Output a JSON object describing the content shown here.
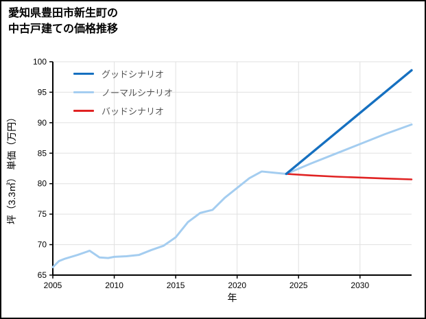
{
  "title": {
    "line1": "愛知県豊田市新生町の",
    "line2": "中古戸建ての価格推移"
  },
  "chart_data": {
    "type": "line",
    "title": "愛知県豊田市新生町の中古戸建ての価格推移",
    "xlabel": "年",
    "ylabel": "坪（3.3㎡） 単価（万円）",
    "xlim": [
      2005,
      2034.2
    ],
    "ylim": [
      65,
      100
    ],
    "xticks": [
      2005,
      2010,
      2015,
      2020,
      2025,
      2030
    ],
    "yticks": [
      65,
      70,
      75,
      80,
      85,
      90,
      95,
      100
    ],
    "grid_color": "#e0e0e0",
    "legend_position": "upper-left-inside",
    "draw_order": [
      1,
      2,
      0
    ],
    "series": [
      {
        "name": "グッドシナリオ",
        "color": "#1670c0",
        "width": 3.4,
        "x": [
          2024,
          2034.2
        ],
        "y": [
          81.6,
          98.6
        ]
      },
      {
        "name": "ノーマルシナリオ",
        "color": "#a4cdf0",
        "width": 3,
        "x": [
          2005,
          2005.5,
          2006,
          2007,
          2008,
          2008.8,
          2009.5,
          2010,
          2011,
          2012,
          2013,
          2014,
          2015,
          2016,
          2017,
          2018,
          2019,
          2020,
          2021,
          2022,
          2023,
          2024,
          2026,
          2028,
          2030,
          2032,
          2034.2
        ],
        "y": [
          66.3,
          67.3,
          67.7,
          68.3,
          69.0,
          67.9,
          67.8,
          68.0,
          68.1,
          68.3,
          69.1,
          69.8,
          71.2,
          73.7,
          75.2,
          75.7,
          77.7,
          79.3,
          80.9,
          82.0,
          81.8,
          81.6,
          83.3,
          84.9,
          86.5,
          88.1,
          89.7
        ]
      },
      {
        "name": "バッドシナリオ",
        "color": "#e02222",
        "width": 2.6,
        "x": [
          2024,
          2026,
          2028,
          2030,
          2032,
          2034.2
        ],
        "y": [
          81.6,
          81.35,
          81.15,
          81.0,
          80.85,
          80.7
        ]
      }
    ]
  }
}
